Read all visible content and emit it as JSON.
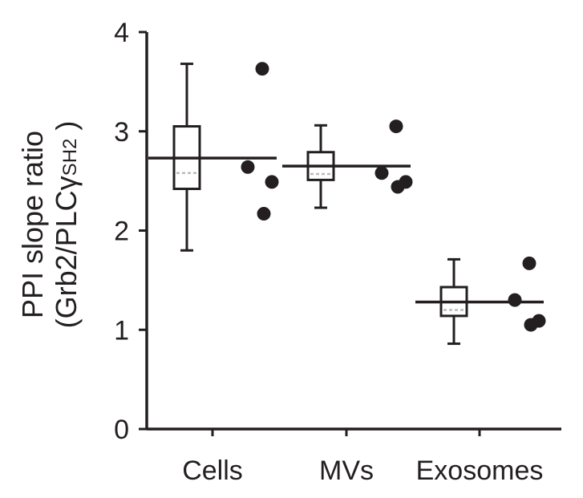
{
  "chart_data": {
    "type": "box",
    "ylabel_line1": "PPI slope ratio",
    "ylabel_line2_prefix": "(Grb2/PLC",
    "ylabel_line2_greek": "γ",
    "ylabel_line2_sub": "SH2",
    "ylabel_line2_suffix": " )",
    "xlabel": "",
    "ylim": [
      0,
      4
    ],
    "yticks": [
      "0",
      "1",
      "2",
      "3",
      "4"
    ],
    "categories": [
      "Cells",
      "MVs",
      "Exosomes"
    ],
    "groups": [
      {
        "category": "Cells",
        "whisker_low": 1.8,
        "q1": 2.42,
        "median": 2.58,
        "q3": 3.05,
        "whisker_high": 3.68,
        "mean": 2.73,
        "points": [
          3.63,
          2.64,
          2.49,
          2.17
        ]
      },
      {
        "category": "MVs",
        "whisker_low": 2.23,
        "q1": 2.51,
        "median": 2.57,
        "q3": 2.79,
        "whisker_high": 3.06,
        "mean": 2.65,
        "points": [
          3.05,
          2.58,
          2.49,
          2.44
        ]
      },
      {
        "category": "Exosomes",
        "whisker_low": 0.86,
        "q1": 1.14,
        "median": 1.2,
        "q3": 1.43,
        "whisker_high": 1.71,
        "mean": 1.28,
        "points": [
          1.67,
          1.3,
          1.09,
          1.05
        ]
      }
    ],
    "colors": {
      "ink": "#231f20",
      "box_fill": "#ffffff",
      "median_dash": "#bbbbbb"
    }
  }
}
